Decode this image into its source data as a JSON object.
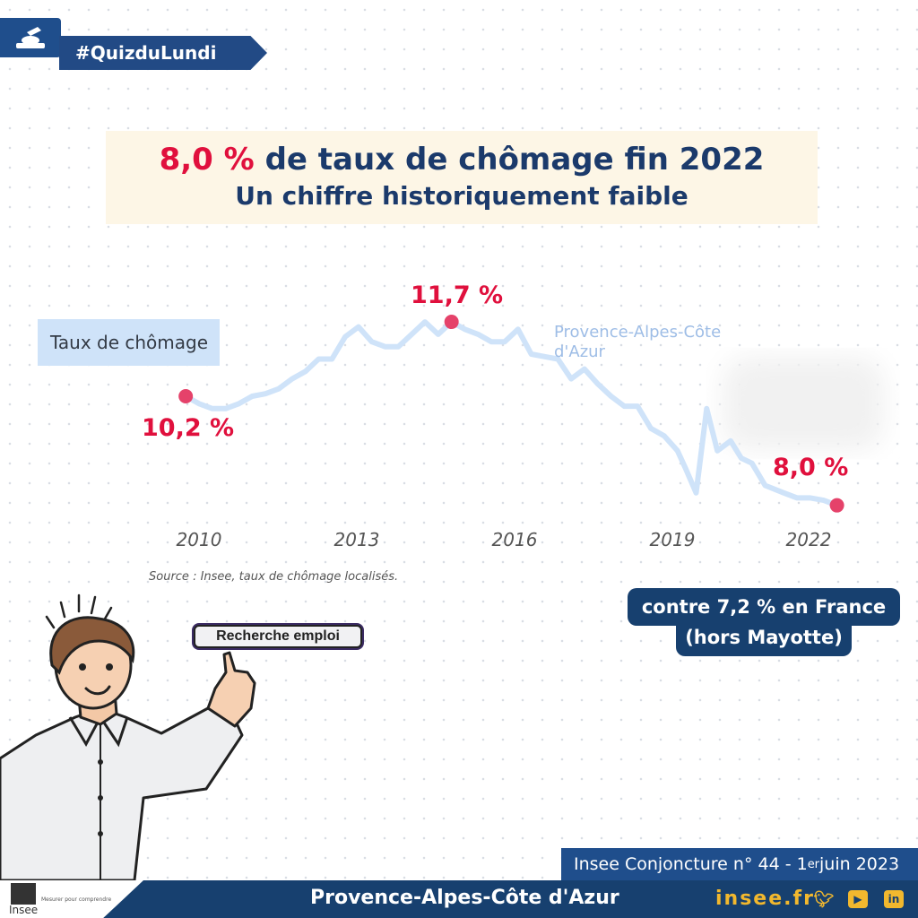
{
  "header": {
    "hashtag": "#QuizduLundi"
  },
  "title": {
    "highlight": "8,0 %",
    "rest": " de taux de chômage fin 2022",
    "subtitle": "Un chiffre historiquement faible"
  },
  "chart_data": {
    "type": "line",
    "legend_label": "Taux de chômage",
    "series_label": "Provence-Alpes-Côte d'Azur",
    "x_ticks": [
      "2010",
      "2013",
      "2016",
      "2019",
      "2022"
    ],
    "series": [
      {
        "name": "Provence-Alpes-Côte d'Azur",
        "color": "#cfe3f9",
        "x": [
          2009.75,
          2010.0,
          2010.25,
          2010.5,
          2010.75,
          2011.0,
          2011.25,
          2011.5,
          2011.75,
          2012.0,
          2012.25,
          2012.5,
          2012.75,
          2013.0,
          2013.25,
          2013.5,
          2013.75,
          2014.0,
          2014.25,
          2014.5,
          2014.75,
          2015.0,
          2015.25,
          2015.5,
          2015.75,
          2016.0,
          2016.25,
          2016.5,
          2016.75,
          2017.0,
          2017.25,
          2017.5,
          2017.75,
          2018.0,
          2018.25,
          2018.5,
          2018.75,
          2019.0,
          2019.15,
          2019.35,
          2019.55,
          2019.75,
          2020.0,
          2020.2,
          2020.4,
          2020.65,
          2021.0,
          2021.25,
          2021.5,
          2021.75,
          2022.0
        ],
        "values": [
          10.2,
          10.05,
          9.95,
          9.95,
          10.05,
          10.2,
          10.25,
          10.35,
          10.55,
          10.7,
          10.95,
          10.95,
          11.4,
          11.6,
          11.3,
          11.2,
          11.2,
          11.45,
          11.7,
          11.45,
          11.7,
          11.55,
          11.45,
          11.3,
          11.3,
          11.55,
          11.05,
          11.0,
          10.95,
          10.55,
          10.75,
          10.45,
          10.2,
          10.0,
          10.0,
          9.55,
          9.4,
          9.1,
          8.75,
          8.25,
          9.95,
          9.1,
          9.3,
          8.95,
          8.85,
          8.4,
          8.25,
          8.15,
          8.15,
          8.1,
          8.0
        ]
      }
    ],
    "annotations": [
      {
        "label": "10,2 %",
        "x": 2009.75,
        "y": 10.2
      },
      {
        "label": "11,7 %",
        "x": 2014.75,
        "y": 11.7
      },
      {
        "label": "8,0 %",
        "x": 2022.0,
        "y": 8.0
      }
    ],
    "marker_color": "#e5426a",
    "source": "Source : Insee, taux de chômage localisés."
  },
  "comparison": {
    "line1": "contre 7,2 %  en France",
    "line2": "(hors Mayotte)"
  },
  "search_box": {
    "label": "Recherche emploi"
  },
  "footer": {
    "publication": "Insee Conjoncture n° 44 - 1",
    "publication_sup": "er",
    "publication_date": "  juin 2023",
    "region": "Provence-Alpes-Côte d'Azur",
    "site": "insee.fr",
    "logo_word": "Insee",
    "logo_tagline": "Mesurer pour comprendre"
  },
  "colors": {
    "navy": "#17406f",
    "accent_red": "#e0103d",
    "gold": "#f2b82e",
    "title_bg": "#fdf6e6"
  }
}
